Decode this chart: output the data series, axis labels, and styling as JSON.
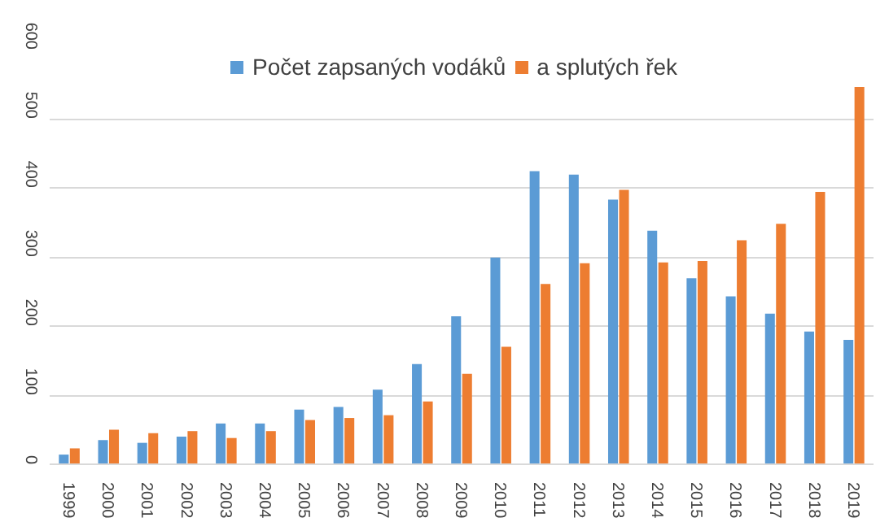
{
  "chart_data": {
    "type": "bar",
    "categories": [
      "1999",
      "2000",
      "2001",
      "2002",
      "2003",
      "2004",
      "2005",
      "2006",
      "2007",
      "2008",
      "2009",
      "2010",
      "2011",
      "2012",
      "2013",
      "2014",
      "2015",
      "2016",
      "2017",
      "2018",
      "2019"
    ],
    "series": [
      {
        "name": "Počet zapsaných vodáků",
        "color": "#5b9bd5",
        "values": [
          14,
          35,
          31,
          40,
          59,
          59,
          79,
          83,
          108,
          145,
          214,
          299,
          424,
          419,
          383,
          338,
          269,
          243,
          218,
          192,
          180
        ]
      },
      {
        "name": "a splutých řek",
        "color": "#ed7d31",
        "values": [
          23,
          50,
          45,
          48,
          38,
          48,
          64,
          67,
          71,
          91,
          131,
          170,
          261,
          291,
          397,
          292,
          294,
          324,
          348,
          394,
          546
        ]
      }
    ],
    "ylim": [
      0,
      600
    ],
    "yticks": [
      0,
      100,
      200,
      300,
      400,
      500,
      600
    ],
    "grid": "y",
    "legend": "top"
  }
}
